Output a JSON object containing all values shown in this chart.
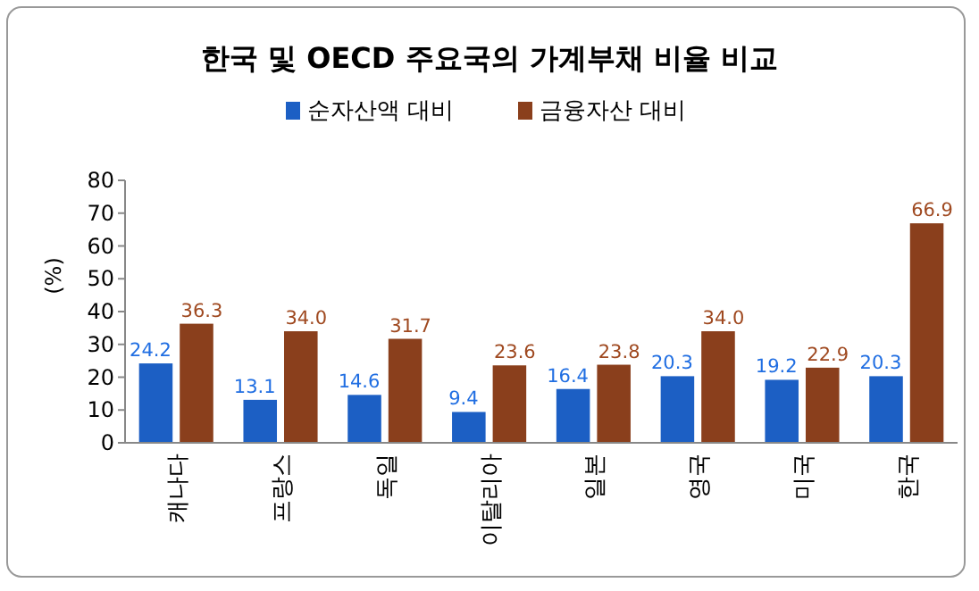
{
  "chart_data": {
    "type": "bar",
    "title": "한국 및 OECD 주요국의 가계부채 비율 비교",
    "ylabel": "(%)",
    "categories": [
      "캐나다",
      "프랑스",
      "독일",
      "이탈리아",
      "일본",
      "영국",
      "미국",
      "한국"
    ],
    "series": [
      {
        "name": "순자산액 대비",
        "color": "#1c5fc4",
        "values": [
          24.2,
          13.1,
          14.6,
          9.4,
          16.4,
          20.3,
          19.2,
          20.3
        ]
      },
      {
        "name": "금융자산 대비",
        "color": "#8a3f1c",
        "values": [
          36.3,
          34.0,
          31.7,
          23.6,
          23.8,
          34.0,
          22.9,
          66.9
        ],
        "value_labels": [
          "36.3",
          "34.0",
          "31.7",
          "23.6",
          "23.8",
          "34.0",
          "22.9",
          "66.9"
        ]
      }
    ],
    "ylim": [
      0,
      80
    ],
    "yticks": [
      0,
      10,
      20,
      30,
      40,
      50,
      60,
      70,
      80
    ],
    "legend": "top",
    "grid": false,
    "data_labels": true
  }
}
